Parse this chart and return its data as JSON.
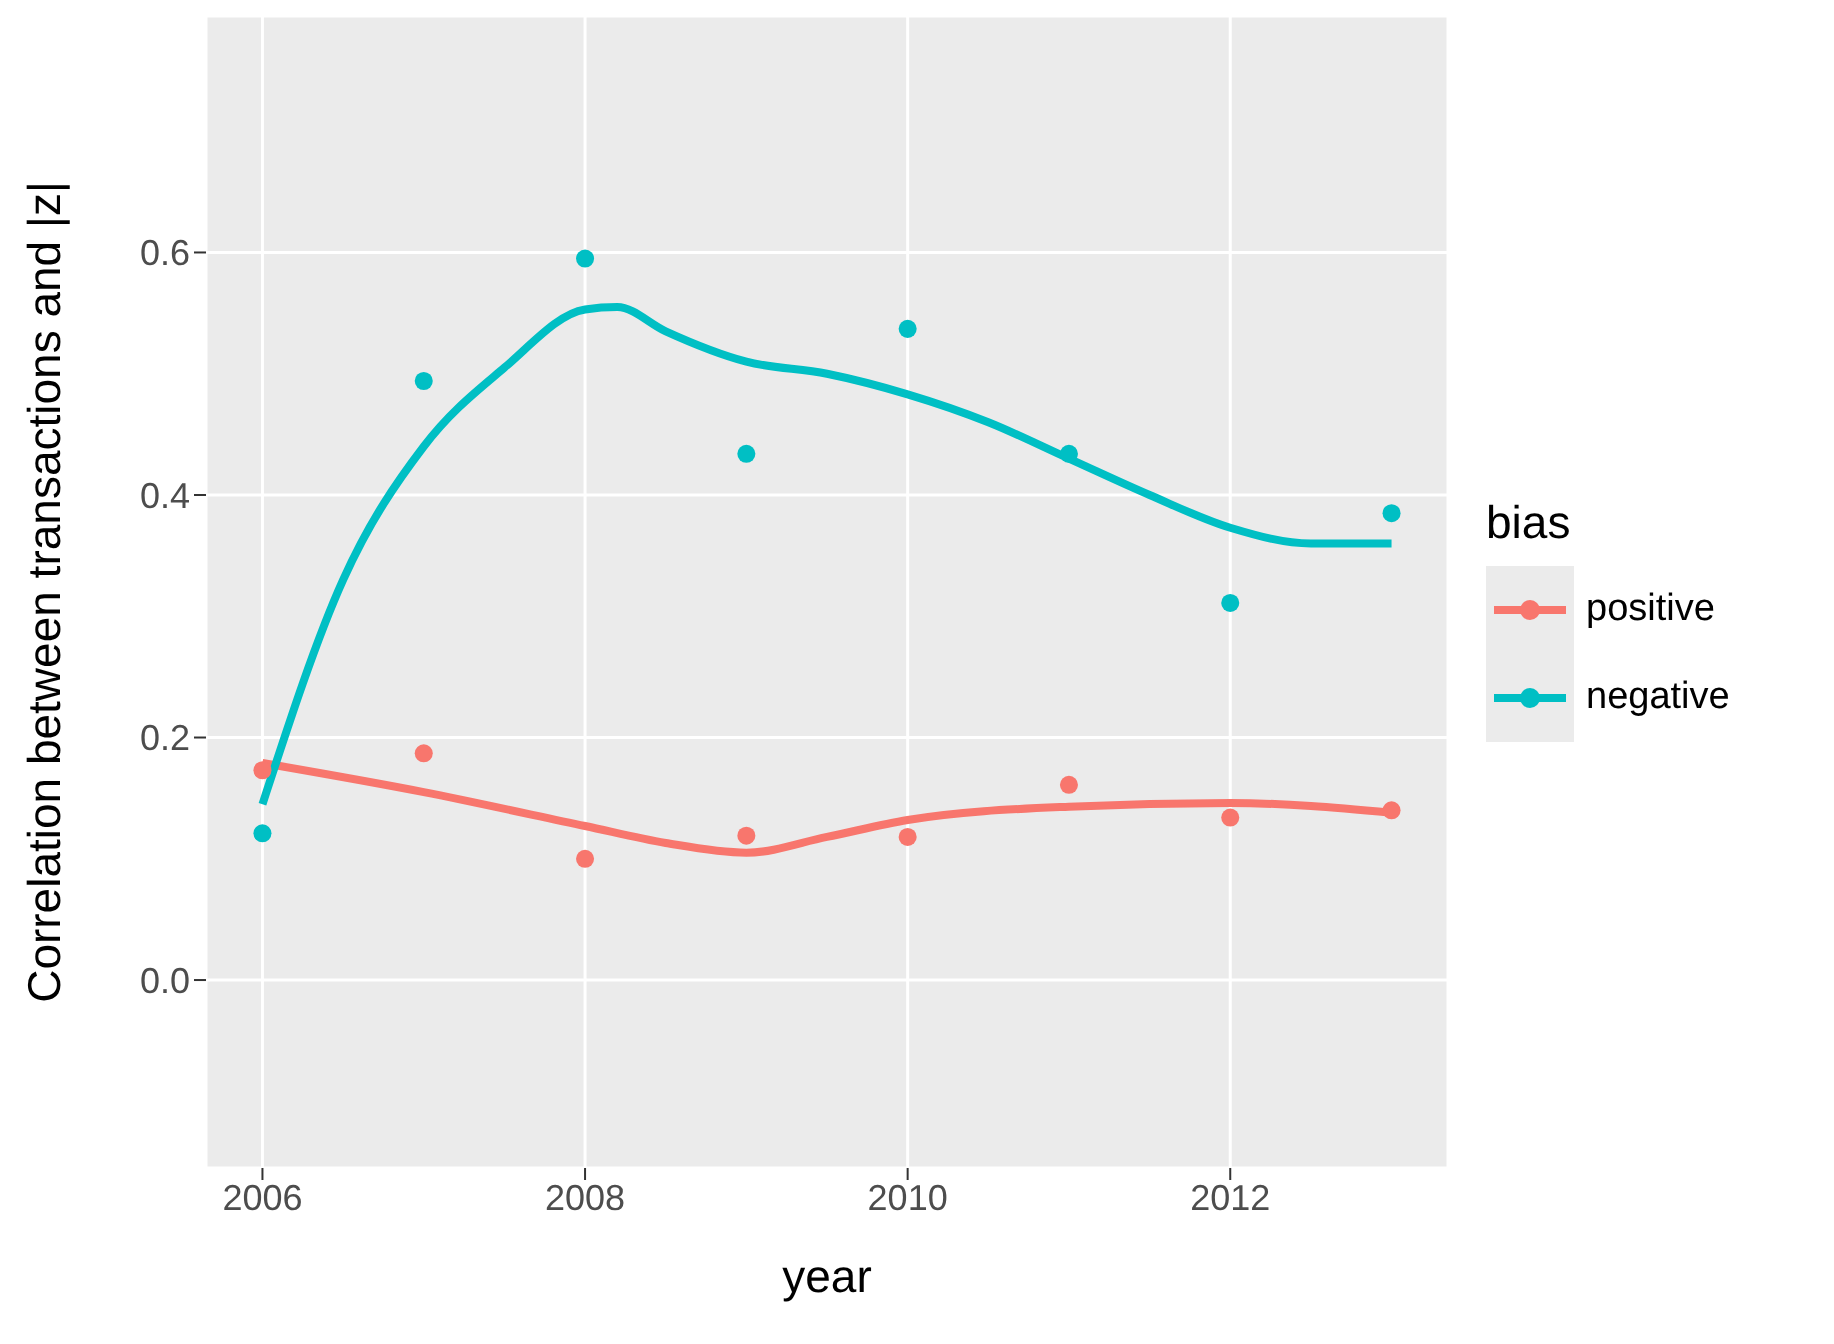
{
  "chart_data": {
    "type": "scatter",
    "xlabel": "year",
    "ylabel": "Correlation between transactions and |z|",
    "legend_title": "bias",
    "x": [
      2006,
      2007,
      2008,
      2009,
      2010,
      2011,
      2012,
      2013
    ],
    "series": [
      {
        "name": "positive",
        "color": "#f8766d",
        "values": [
          0.173,
          0.187,
          0.1,
          0.119,
          0.118,
          0.161,
          0.134,
          0.14
        ]
      },
      {
        "name": "negative",
        "color": "#00bfc4",
        "values": [
          0.121,
          0.494,
          0.595,
          0.434,
          0.537,
          0.434,
          0.311,
          0.385
        ]
      },
      {
        "type": "line",
        "marker": "none",
        "color": "#f8766d",
        "x": [
          2006,
          2007,
          2008,
          2008.5,
          2009,
          2009.5,
          2010,
          2011,
          2012,
          2013
        ],
        "values": [
          0.179,
          0.155,
          0.127,
          0.113,
          0.105,
          0.118,
          0.132,
          0.143,
          0.146,
          0.138
        ]
      },
      {
        "type": "line",
        "marker": "none",
        "color": "#00bfc4",
        "x": [
          2006,
          2006.5,
          2007,
          2007.5,
          2008,
          2008.2,
          2008.5,
          2009,
          2009.5,
          2010,
          2010.5,
          2011,
          2011.5,
          2012,
          2012.5,
          2013
        ],
        "values": [
          0.145,
          0.33,
          0.44,
          0.505,
          0.553,
          0.555,
          0.535,
          0.51,
          0.5,
          0.483,
          0.46,
          0.43,
          0.4,
          0.373,
          0.36,
          0.36
        ]
      }
    ],
    "xlim": [
      2005.65,
      2013.35
    ],
    "xticks": [
      2006,
      2008,
      2010,
      2012
    ],
    "ylim": [
      -0.155,
      0.795
    ],
    "yticks": [
      {
        "value": 0,
        "label": "0.0"
      },
      {
        "value": 0.2,
        "label": "0.2"
      },
      {
        "value": 0.4,
        "label": "0.4"
      },
      {
        "value": 0.6,
        "label": "0.6"
      }
    ],
    "grid": true,
    "legend": "right",
    "marker": "circle"
  }
}
